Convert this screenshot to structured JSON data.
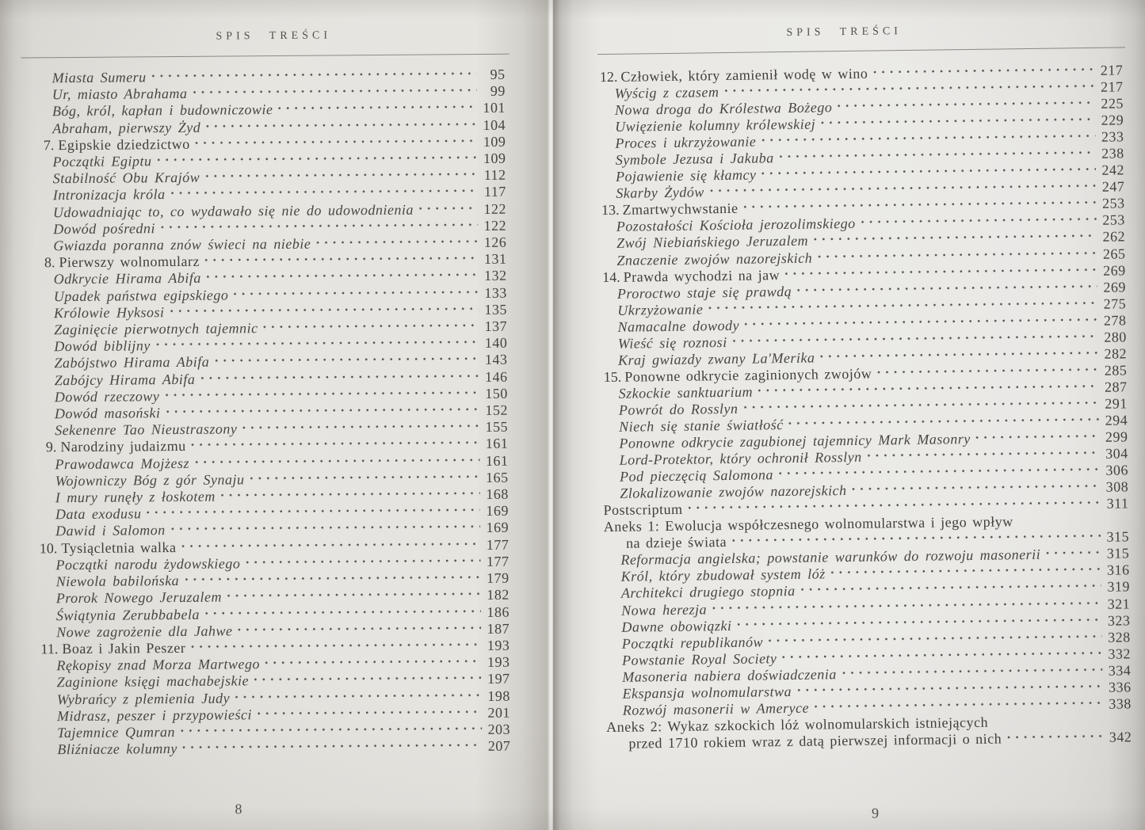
{
  "style": {
    "paper_left": "#e6e4df",
    "paper_right": "#ebeae7",
    "ink": "#46433e",
    "rule_color": "#8d8a85"
  },
  "left_page": {
    "header": "SPIS TREŚCI",
    "page_number": "8",
    "entries": [
      {
        "label": "Miasta Sumeru",
        "page": "95",
        "style": "sub"
      },
      {
        "label": "Ur, miasto Abrahama",
        "page": "99",
        "style": "sub"
      },
      {
        "label": "Bóg, król, kapłan i budowniczowie",
        "page": "101",
        "style": "sub"
      },
      {
        "label": "Abraham, pierwszy Żyd",
        "page": "104",
        "style": "sub"
      },
      {
        "num": "7.",
        "label": "Egipskie dziedzictwo",
        "page": "109",
        "style": "chapter"
      },
      {
        "label": "Początki Egiptu",
        "page": "109",
        "style": "sub"
      },
      {
        "label": "Stabilność Obu Krajów",
        "page": "112",
        "style": "sub"
      },
      {
        "label": "Intronizacja króla",
        "page": "117",
        "style": "sub"
      },
      {
        "label": "Udowadniając to, co wydawało się nie do udowodnienia",
        "page": "122",
        "style": "sub"
      },
      {
        "label": "Dowód pośredni",
        "page": "122",
        "style": "sub"
      },
      {
        "label": "Gwiazda poranna znów świeci na niebie",
        "page": "126",
        "style": "sub"
      },
      {
        "num": "8.",
        "label": "Pierwszy wolnomularz",
        "page": "131",
        "style": "chapter"
      },
      {
        "label": "Odkrycie Hirama Abifa",
        "page": "132",
        "style": "sub"
      },
      {
        "label": "Upadek państwa egipskiego",
        "page": "133",
        "style": "sub"
      },
      {
        "label": "Królowie Hyksosi",
        "page": "135",
        "style": "sub"
      },
      {
        "label": "Zaginięcie pierwotnych tajemnic",
        "page": "137",
        "style": "sub"
      },
      {
        "label": "Dowód biblijny",
        "page": "140",
        "style": "sub"
      },
      {
        "label": "Zabójstwo Hirama Abifa",
        "page": "143",
        "style": "sub"
      },
      {
        "label": "Zabójcy Hirama Abifa",
        "page": "146",
        "style": "sub"
      },
      {
        "label": "Dowód rzeczowy",
        "page": "150",
        "style": "sub"
      },
      {
        "label": "Dowód masoński",
        "page": "152",
        "style": "sub"
      },
      {
        "label": "Sekenenre Tao Nieustraszony",
        "page": "155",
        "style": "sub"
      },
      {
        "num": "9.",
        "label": "Narodziny judaizmu",
        "page": "161",
        "style": "chapter"
      },
      {
        "label": "Prawodawca Mojżesz",
        "page": "161",
        "style": "sub"
      },
      {
        "label": "Wojowniczy Bóg z gór Synaju",
        "page": "165",
        "style": "sub"
      },
      {
        "label": "I mury runęły z łoskotem",
        "page": "168",
        "style": "sub"
      },
      {
        "label": "Data exodusu",
        "page": "169",
        "style": "sub"
      },
      {
        "label": "Dawid i Salomon",
        "page": "169",
        "style": "sub"
      },
      {
        "num": "10.",
        "label": "Tysiącletnia walka",
        "page": "177",
        "style": "chapter"
      },
      {
        "label": "Początki narodu żydowskiego",
        "page": "177",
        "style": "sub"
      },
      {
        "label": "Niewola babilońska",
        "page": "179",
        "style": "sub"
      },
      {
        "label": "Prorok Nowego Jeruzalem",
        "page": "182",
        "style": "sub"
      },
      {
        "label": "Świątynia Zerubbabela",
        "page": "186",
        "style": "sub"
      },
      {
        "label": "Nowe zagrożenie dla Jahwe",
        "page": "187",
        "style": "sub"
      },
      {
        "num": "11.",
        "label": "Boaz i Jakin Peszer",
        "page": "193",
        "style": "chapter"
      },
      {
        "label": "Rękopisy znad Morza Martwego",
        "page": "193",
        "style": "sub"
      },
      {
        "label": "Zaginione księgi machabejskie",
        "page": "197",
        "style": "sub"
      },
      {
        "label": "Wybrańcy z plemienia Judy",
        "page": "198",
        "style": "sub"
      },
      {
        "label": "Midrasz, peszer i przypowieści",
        "page": "201",
        "style": "sub"
      },
      {
        "label": "Tajemnice Qumran",
        "page": "203",
        "style": "sub"
      },
      {
        "label": "Bliźniacze kolumny",
        "page": "207",
        "style": "sub"
      }
    ]
  },
  "right_page": {
    "header": "SPIS TREŚCI",
    "page_number": "9",
    "entries": [
      {
        "num": "12.",
        "label": "Człowiek, który zamienił wodę w wino",
        "page": "217",
        "style": "chapter"
      },
      {
        "label": "Wyścig z czasem",
        "page": "217",
        "style": "sub"
      },
      {
        "label": "Nowa droga do Królestwa Bożego",
        "page": "225",
        "style": "sub"
      },
      {
        "label": "Uwięzienie kolumny królewskiej",
        "page": "229",
        "style": "sub"
      },
      {
        "label": "Proces i ukrzyżowanie",
        "page": "233",
        "style": "sub"
      },
      {
        "label": "Symbole Jezusa i Jakuba",
        "page": "238",
        "style": "sub"
      },
      {
        "label": "Pojawienie się kłamcy",
        "page": "242",
        "style": "sub"
      },
      {
        "label": "Skarby Żydów",
        "page": "247",
        "style": "sub"
      },
      {
        "num": "13.",
        "label": "Zmartwychwstanie",
        "page": "253",
        "style": "chapter"
      },
      {
        "label": "Pozostałości Kościoła jerozolimskiego",
        "page": "253",
        "style": "sub"
      },
      {
        "label": "Zwój Niebiańskiego Jeruzalem",
        "page": "262",
        "style": "sub"
      },
      {
        "label": "Znaczenie zwojów nazorejskich",
        "page": "265",
        "style": "sub"
      },
      {
        "num": "14.",
        "label": "Prawda wychodzi na jaw",
        "page": "269",
        "style": "chapter"
      },
      {
        "label": "Proroctwo staje się prawdą",
        "page": "269",
        "style": "sub"
      },
      {
        "label": "Ukrzyżowanie",
        "page": "275",
        "style": "sub"
      },
      {
        "label": "Namacalne dowody",
        "page": "278",
        "style": "sub"
      },
      {
        "label": "Wieść się roznosi",
        "page": "280",
        "style": "sub"
      },
      {
        "label": "Kraj gwiazdy zwany La'Merika",
        "page": "282",
        "style": "sub"
      },
      {
        "num": "15.",
        "label": "Ponowne odkrycie zaginionych zwojów",
        "page": "285",
        "style": "chapter"
      },
      {
        "label": "Szkockie sanktuarium",
        "page": "287",
        "style": "sub"
      },
      {
        "label": "Powrót do Rosslyn",
        "page": "291",
        "style": "sub"
      },
      {
        "label": "Niech się stanie światłość",
        "page": "294",
        "style": "sub"
      },
      {
        "label": "Ponowne odkrycie zagubionej tajemnicy Mark Masonry",
        "page": "299",
        "style": "sub"
      },
      {
        "label": "Lord-Protektor, który ochronił Rosslyn",
        "page": "304",
        "style": "sub"
      },
      {
        "label": "Pod pieczęcią Salomona",
        "page": "306",
        "style": "sub"
      },
      {
        "label": "Zlokalizowanie zwojów nazorejskich",
        "page": "308",
        "style": "sub"
      },
      {
        "label": "Postscriptum",
        "page": "311",
        "style": "plain"
      },
      {
        "label": "Aneks 1: Ewolucja współczesnego wolnomularstwa i jego wpływ",
        "style": "plain"
      },
      {
        "label": "na dzieje świata",
        "page": "315",
        "style": "wrap"
      },
      {
        "label": "Reformacja angielska; powstanie warunków do rozwoju masonerii",
        "page": "315",
        "style": "sub"
      },
      {
        "label": "Król, który zbudował system lóż",
        "page": "316",
        "style": "sub"
      },
      {
        "label": "Architekci drugiego stopnia",
        "page": "319",
        "style": "sub"
      },
      {
        "label": "Nowa herezja",
        "page": "321",
        "style": "sub"
      },
      {
        "label": "Dawne obowiązki",
        "page": "323",
        "style": "sub"
      },
      {
        "label": "Początki republikanów",
        "page": "328",
        "style": "sub"
      },
      {
        "label": "Powstanie Royal Society",
        "page": "332",
        "style": "sub"
      },
      {
        "label": "Masoneria nabiera doświadczenia",
        "page": "334",
        "style": "sub"
      },
      {
        "label": "Ekspansja wolnomularstwa",
        "page": "336",
        "style": "sub"
      },
      {
        "label": "Rozwój masonerii w Ameryce",
        "page": "338",
        "style": "sub"
      },
      {
        "label": "Aneks 2: Wykaz szkockich lóż wolnomularskich istniejących",
        "style": "plain"
      },
      {
        "label": "przed 1710 rokiem wraz z datą pierwszej informacji o nich",
        "page": "342",
        "style": "wrap"
      }
    ]
  }
}
